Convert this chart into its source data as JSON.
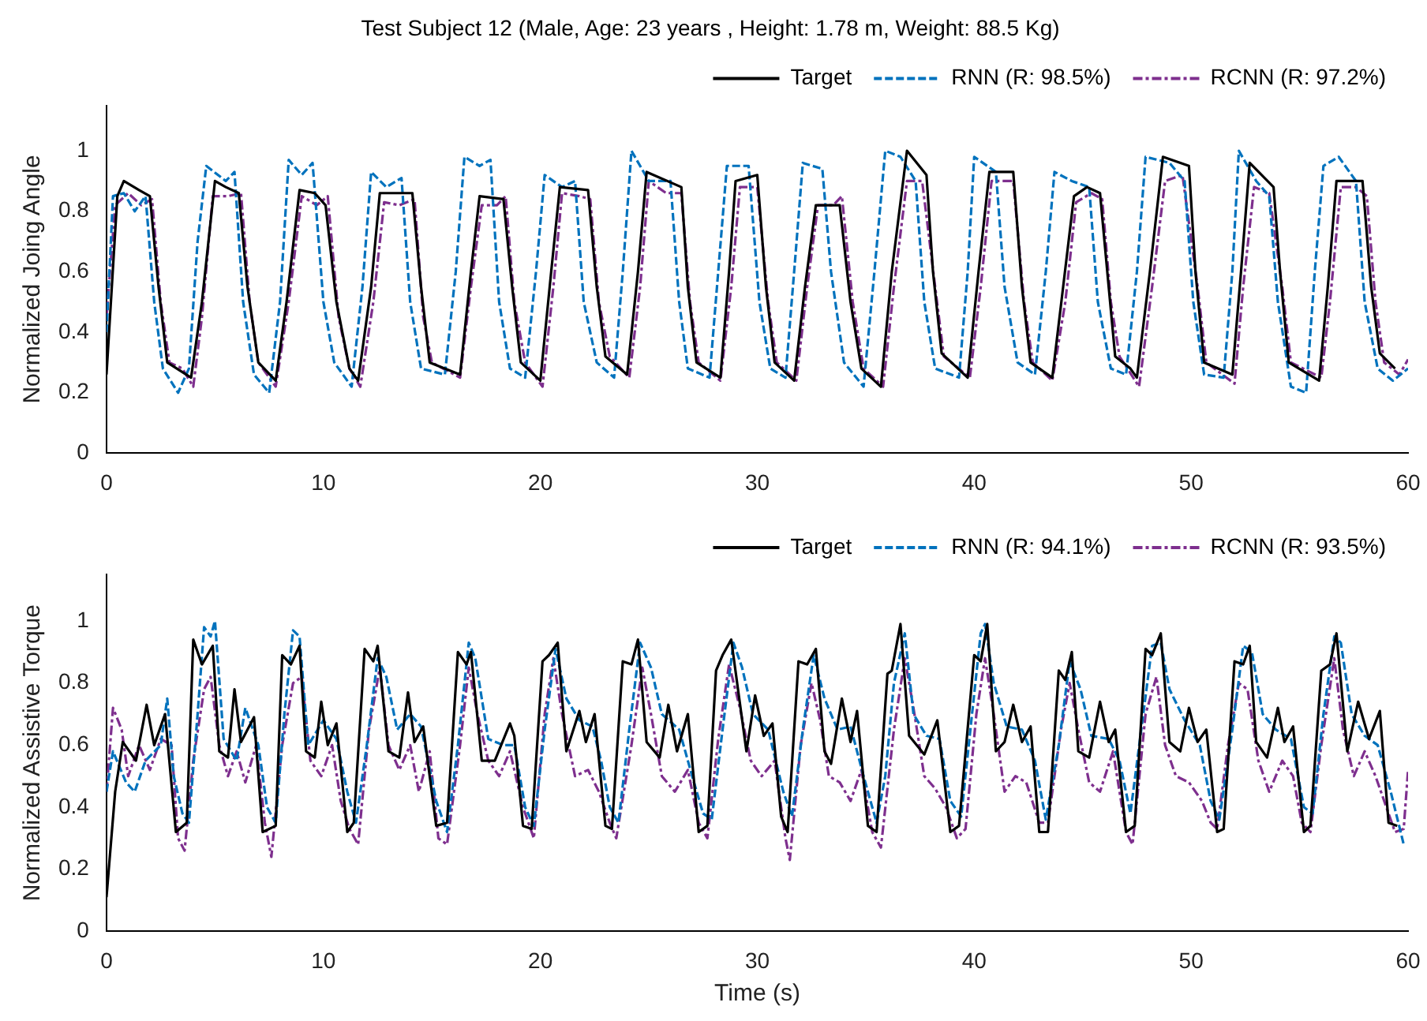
{
  "chart_data": [
    {
      "type": "line",
      "title": "Test Subject 12 (Male, Age: 23 years , Height: 1.78 m, Weight: 88.5 Kg)",
      "ylabel": "Normalized Joing Angle",
      "xlim": [
        0,
        60
      ],
      "xticks": [
        0,
        10,
        20,
        30,
        40,
        50,
        60
      ],
      "ylim": [
        0,
        1.15
      ],
      "yticks": [
        0,
        0.2,
        0.4,
        0.6,
        0.8,
        1
      ],
      "grid": false,
      "legend": "top right",
      "marker": "none",
      "series": [
        {
          "name": "Target",
          "color": "#000000",
          "line_style": "solid",
          "x": [
            0,
            0.5,
            0.8,
            1.5,
            2.0,
            2.4,
            2.8,
            3.9,
            4.4,
            5.0,
            5.5,
            6.1,
            6.5,
            7.0,
            7.8,
            8.3,
            8.9,
            9.6,
            10.1,
            10.6,
            11.2,
            11.6,
            12.2,
            12.6,
            14.1,
            14.5,
            14.9,
            16.3,
            16.8,
            17.2,
            18.3,
            18.7,
            19.1,
            20.0,
            20.5,
            20.9,
            22.2,
            22.6,
            23.0,
            24.0,
            24.5,
            24.9,
            26.5,
            26.8,
            27.2,
            28.3,
            28.7,
            29.0,
            30.0,
            30.4,
            30.8,
            31.7,
            32.2,
            32.7,
            33.8,
            34.3,
            34.8,
            35.7,
            36.2,
            36.9,
            37.8,
            38.1,
            38.5,
            39.7,
            40.2,
            40.7,
            41.8,
            42.2,
            42.6,
            43.6,
            44.1,
            44.6,
            45.2,
            45.8,
            46.2,
            46.5,
            47.2,
            47.5,
            48.1,
            48.7,
            49.9,
            50.2,
            50.6,
            51.9,
            52.3,
            52.7,
            53.8,
            54.1,
            54.5,
            55.9,
            56.3,
            56.7,
            57.9,
            58.3,
            58.7,
            59.4
          ],
          "values": [
            0.26,
            0.85,
            0.9,
            0.87,
            0.85,
            0.55,
            0.3,
            0.25,
            0.5,
            0.9,
            0.88,
            0.86,
            0.55,
            0.3,
            0.24,
            0.5,
            0.87,
            0.86,
            0.82,
            0.5,
            0.28,
            0.24,
            0.55,
            0.86,
            0.86,
            0.55,
            0.3,
            0.26,
            0.6,
            0.85,
            0.84,
            0.55,
            0.3,
            0.24,
            0.6,
            0.88,
            0.87,
            0.55,
            0.32,
            0.26,
            0.6,
            0.93,
            0.88,
            0.55,
            0.3,
            0.25,
            0.6,
            0.9,
            0.92,
            0.55,
            0.3,
            0.24,
            0.55,
            0.82,
            0.82,
            0.5,
            0.28,
            0.22,
            0.6,
            1.0,
            0.92,
            0.6,
            0.33,
            0.25,
            0.6,
            0.93,
            0.93,
            0.55,
            0.3,
            0.25,
            0.55,
            0.85,
            0.88,
            0.86,
            0.55,
            0.32,
            0.28,
            0.25,
            0.6,
            0.98,
            0.95,
            0.6,
            0.3,
            0.26,
            0.6,
            0.96,
            0.88,
            0.6,
            0.3,
            0.24,
            0.55,
            0.9,
            0.9,
            0.55,
            0.33,
            0.28
          ]
        },
        {
          "name": "RNN (R: 98.5%)",
          "color": "#0072bd",
          "line_style": "dashed",
          "x": [
            0,
            0.3,
            0.8,
            1.3,
            1.8,
            2.2,
            2.6,
            3.3,
            3.8,
            4.2,
            4.6,
            5.5,
            5.9,
            6.3,
            6.8,
            7.5,
            8.0,
            8.4,
            9.0,
            9.5,
            10.0,
            10.5,
            11.3,
            11.8,
            12.2,
            12.9,
            13.6,
            14.0,
            14.5,
            15.6,
            16.1,
            16.5,
            17.2,
            17.7,
            18.1,
            18.6,
            19.3,
            19.8,
            20.2,
            21.0,
            21.6,
            22.0,
            22.6,
            23.4,
            23.8,
            24.2,
            25.0,
            26.0,
            26.4,
            26.8,
            27.8,
            28.2,
            28.6,
            29.6,
            30.1,
            30.6,
            31.3,
            31.7,
            32.1,
            33.0,
            33.4,
            34.0,
            34.9,
            35.4,
            35.9,
            36.6,
            37.3,
            37.7,
            38.2,
            39.3,
            39.7,
            40.0,
            41.0,
            41.4,
            42.0,
            42.8,
            43.3,
            43.7,
            44.5,
            45.3,
            45.7,
            46.3,
            47.0,
            47.5,
            47.9,
            49.0,
            49.7,
            50.1,
            50.6,
            51.5,
            51.9,
            52.2,
            53.0,
            53.6,
            54.0,
            54.6,
            55.3,
            55.7,
            56.1,
            56.8,
            57.6,
            58.0,
            58.6,
            59.3,
            60
          ],
          "values": [
            0.4,
            0.85,
            0.86,
            0.8,
            0.85,
            0.5,
            0.28,
            0.2,
            0.28,
            0.7,
            0.95,
            0.9,
            0.93,
            0.5,
            0.26,
            0.2,
            0.5,
            0.97,
            0.92,
            0.96,
            0.5,
            0.3,
            0.22,
            0.55,
            0.93,
            0.88,
            0.91,
            0.5,
            0.28,
            0.26,
            0.6,
            0.98,
            0.95,
            0.97,
            0.5,
            0.28,
            0.25,
            0.6,
            0.92,
            0.88,
            0.9,
            0.5,
            0.3,
            0.25,
            0.6,
            1.0,
            0.9,
            0.9,
            0.5,
            0.28,
            0.25,
            0.6,
            0.95,
            0.95,
            0.5,
            0.28,
            0.25,
            0.6,
            0.96,
            0.94,
            0.6,
            0.3,
            0.22,
            0.6,
            1.0,
            0.98,
            0.9,
            0.5,
            0.28,
            0.25,
            0.6,
            0.98,
            0.93,
            0.55,
            0.3,
            0.26,
            0.6,
            0.93,
            0.9,
            0.88,
            0.5,
            0.28,
            0.26,
            0.6,
            0.98,
            0.96,
            0.9,
            0.5,
            0.26,
            0.25,
            0.6,
            1.0,
            0.9,
            0.85,
            0.5,
            0.22,
            0.2,
            0.6,
            0.95,
            0.98,
            0.9,
            0.5,
            0.28,
            0.24,
            0.28
          ]
        },
        {
          "name": "RCNN (R: 97.2%)",
          "color": "#7e2f8e",
          "line_style": "dashdot",
          "x": [
            0,
            0.4,
            1.0,
            1.6,
            2.1,
            2.5,
            2.9,
            3.5,
            4.0,
            4.4,
            4.9,
            5.6,
            6.2,
            6.6,
            7.0,
            7.8,
            8.4,
            9.0,
            9.7,
            10.2,
            10.7,
            11.2,
            11.7,
            12.3,
            12.8,
            13.5,
            14.2,
            14.6,
            15.0,
            16.3,
            16.8,
            17.3,
            18.0,
            18.4,
            18.8,
            19.3,
            20.1,
            20.6,
            21.0,
            21.8,
            22.3,
            22.7,
            23.2,
            24.1,
            24.6,
            25.0,
            25.8,
            26.5,
            26.9,
            27.3,
            28.3,
            28.8,
            29.2,
            30.0,
            30.5,
            30.9,
            31.8,
            32.3,
            32.8,
            33.5,
            33.9,
            34.4,
            34.9,
            35.8,
            36.3,
            36.9,
            37.6,
            38.2,
            38.6,
            39.8,
            40.3,
            40.8,
            41.8,
            42.3,
            42.7,
            43.6,
            44.2,
            44.7,
            45.4,
            45.9,
            46.3,
            46.7,
            47.6,
            48.2,
            48.8,
            49.6,
            50.3,
            50.7,
            52.0,
            52.4,
            52.9,
            53.6,
            54.2,
            54.6,
            56.0,
            56.4,
            56.9,
            57.6,
            58.1,
            58.5,
            58.9,
            59.6,
            60
          ],
          "values": [
            0.45,
            0.82,
            0.86,
            0.82,
            0.84,
            0.5,
            0.3,
            0.28,
            0.22,
            0.45,
            0.85,
            0.85,
            0.86,
            0.5,
            0.3,
            0.22,
            0.5,
            0.85,
            0.82,
            0.85,
            0.45,
            0.28,
            0.22,
            0.5,
            0.83,
            0.82,
            0.84,
            0.45,
            0.3,
            0.25,
            0.55,
            0.82,
            0.82,
            0.85,
            0.5,
            0.3,
            0.22,
            0.55,
            0.86,
            0.85,
            0.84,
            0.5,
            0.32,
            0.25,
            0.55,
            0.9,
            0.86,
            0.86,
            0.5,
            0.3,
            0.24,
            0.55,
            0.88,
            0.88,
            0.5,
            0.3,
            0.24,
            0.55,
            0.82,
            0.82,
            0.85,
            0.5,
            0.28,
            0.22,
            0.55,
            0.9,
            0.9,
            0.55,
            0.32,
            0.25,
            0.55,
            0.9,
            0.9,
            0.5,
            0.3,
            0.24,
            0.5,
            0.83,
            0.86,
            0.84,
            0.5,
            0.32,
            0.22,
            0.55,
            0.9,
            0.92,
            0.55,
            0.3,
            0.23,
            0.55,
            0.88,
            0.86,
            0.55,
            0.3,
            0.25,
            0.5,
            0.88,
            0.88,
            0.85,
            0.5,
            0.3,
            0.26,
            0.31
          ]
        }
      ]
    },
    {
      "type": "line",
      "xlabel": "Time (s)",
      "ylabel": "Normalized Assistive Torque",
      "xlim": [
        0,
        60
      ],
      "xticks": [
        0,
        10,
        20,
        30,
        40,
        50,
        60
      ],
      "ylim": [
        0,
        1.15
      ],
      "yticks": [
        0,
        0.2,
        0.4,
        0.6,
        0.8,
        1
      ],
      "grid": false,
      "legend": "top right",
      "marker": "none",
      "series": [
        {
          "name": "Target",
          "color": "#000000",
          "line_style": "solid",
          "x": [
            0,
            0.4,
            0.75,
            1.36,
            1.85,
            2.2,
            2.7,
            3.2,
            3.7,
            4.0,
            4.4,
            4.9,
            5.2,
            5.6,
            5.9,
            6.2,
            6.8,
            7.2,
            7.8,
            8.1,
            8.5,
            8.9,
            9.2,
            9.6,
            9.9,
            10.2,
            10.6,
            11.1,
            11.4,
            11.9,
            12.3,
            12.5,
            13.0,
            13.5,
            13.9,
            14.2,
            14.6,
            15.2,
            15.7,
            16.2,
            16.6,
            16.8,
            17.3,
            17.9,
            18.6,
            18.8,
            19.2,
            19.6,
            20.1,
            20.4,
            20.8,
            21.2,
            21.8,
            22.1,
            22.5,
            23.0,
            23.3,
            23.8,
            24.2,
            24.5,
            24.9,
            25.5,
            25.9,
            26.3,
            26.8,
            27.3,
            27.7,
            28.1,
            28.4,
            28.8,
            29.5,
            29.9,
            30.3,
            30.7,
            31.1,
            31.4,
            31.9,
            32.3,
            32.7,
            33.1,
            33.4,
            33.9,
            34.3,
            34.6,
            35.1,
            35.5,
            36.0,
            36.2,
            36.6,
            37.0,
            37.7,
            38.3,
            38.9,
            39.3,
            40.0,
            40.3,
            40.6,
            41.0,
            41.4,
            41.8,
            42.2,
            42.6,
            43.0,
            43.4,
            43.9,
            44.2,
            44.5,
            44.8,
            45.3,
            45.8,
            46.2,
            46.5,
            47.0,
            47.4,
            47.9,
            48.2,
            48.6,
            49.0,
            49.5,
            49.9,
            50.3,
            50.7,
            51.2,
            51.5,
            52.0,
            52.4,
            52.7,
            53.0,
            53.5,
            54.0,
            54.3,
            54.7,
            55.2,
            55.5,
            56.0,
            56.4,
            56.7,
            57.2,
            57.7,
            58.2,
            58.7,
            59.1,
            59.5
          ],
          "values": [
            0.11,
            0.45,
            0.61,
            0.55,
            0.73,
            0.6,
            0.7,
            0.32,
            0.35,
            0.94,
            0.86,
            0.92,
            0.58,
            0.56,
            0.78,
            0.61,
            0.69,
            0.32,
            0.34,
            0.89,
            0.86,
            0.92,
            0.58,
            0.56,
            0.74,
            0.6,
            0.67,
            0.32,
            0.35,
            0.91,
            0.87,
            0.92,
            0.58,
            0.56,
            0.77,
            0.61,
            0.66,
            0.34,
            0.35,
            0.9,
            0.86,
            0.9,
            0.55,
            0.55,
            0.67,
            0.63,
            0.34,
            0.33,
            0.87,
            0.89,
            0.93,
            0.58,
            0.71,
            0.61,
            0.7,
            0.34,
            0.33,
            0.87,
            0.86,
            0.94,
            0.61,
            0.56,
            0.73,
            0.58,
            0.7,
            0.32,
            0.34,
            0.84,
            0.89,
            0.94,
            0.58,
            0.76,
            0.63,
            0.67,
            0.37,
            0.32,
            0.87,
            0.86,
            0.91,
            0.58,
            0.54,
            0.75,
            0.61,
            0.71,
            0.34,
            0.32,
            0.83,
            0.84,
            0.99,
            0.63,
            0.57,
            0.68,
            0.32,
            0.34,
            0.89,
            0.87,
            0.99,
            0.58,
            0.61,
            0.73,
            0.61,
            0.66,
            0.32,
            0.32,
            0.84,
            0.81,
            0.9,
            0.58,
            0.56,
            0.74,
            0.61,
            0.65,
            0.32,
            0.34,
            0.91,
            0.89,
            0.96,
            0.61,
            0.58,
            0.72,
            0.61,
            0.65,
            0.32,
            0.33,
            0.87,
            0.86,
            0.92,
            0.61,
            0.56,
            0.72,
            0.61,
            0.66,
            0.32,
            0.34,
            0.84,
            0.86,
            0.96,
            0.58,
            0.74,
            0.62,
            0.71,
            0.35,
            0.34
          ]
        },
        {
          "name": "RNN (R: 94.1%)",
          "color": "#0072bd",
          "line_style": "dashed",
          "x": [
            0,
            0.3,
            0.9,
            1.3,
            1.8,
            2.5,
            2.8,
            3.1,
            3.5,
            3.8,
            4.2,
            4.5,
            4.8,
            5.0,
            5.4,
            6.0,
            6.4,
            7.0,
            7.4,
            7.8,
            8.2,
            8.6,
            8.9,
            9.3,
            10.0,
            10.6,
            11.1,
            11.5,
            12.0,
            12.5,
            12.9,
            13.4,
            14.0,
            14.5,
            15.2,
            15.7,
            16.2,
            16.7,
            17.0,
            17.6,
            18.3,
            18.8,
            19.3,
            19.7,
            20.2,
            20.7,
            21.2,
            21.8,
            22.4,
            22.8,
            23.2,
            23.6,
            24.1,
            24.6,
            25.1,
            25.6,
            26.4,
            27.0,
            27.5,
            27.9,
            28.4,
            28.9,
            29.3,
            29.8,
            30.5,
            31.2,
            31.6,
            32.1,
            32.6,
            33.1,
            33.7,
            34.3,
            34.9,
            35.5,
            35.9,
            36.3,
            36.8,
            37.2,
            37.8,
            38.4,
            38.9,
            39.4,
            39.9,
            40.3,
            40.5,
            40.9,
            41.5,
            42.2,
            42.8,
            43.3,
            43.9,
            44.4,
            44.9,
            45.4,
            46.2,
            46.7,
            47.2,
            47.7,
            48.2,
            48.6,
            49.0,
            49.7,
            50.4,
            50.9,
            51.3,
            51.9,
            52.4,
            52.8,
            53.3,
            53.9,
            54.6,
            55.2,
            55.6,
            56.1,
            56.6,
            56.9,
            57.4,
            58.0,
            58.6,
            59.2,
            59.8
          ],
          "values": [
            0.45,
            0.58,
            0.48,
            0.45,
            0.55,
            0.6,
            0.75,
            0.5,
            0.38,
            0.35,
            0.7,
            0.98,
            0.95,
            1.0,
            0.62,
            0.55,
            0.72,
            0.6,
            0.4,
            0.35,
            0.7,
            0.97,
            0.95,
            0.6,
            0.68,
            0.62,
            0.45,
            0.35,
            0.6,
            0.88,
            0.82,
            0.65,
            0.7,
            0.66,
            0.42,
            0.32,
            0.6,
            0.93,
            0.88,
            0.62,
            0.6,
            0.6,
            0.4,
            0.34,
            0.65,
            0.91,
            0.75,
            0.68,
            0.66,
            0.55,
            0.4,
            0.35,
            0.65,
            0.93,
            0.85,
            0.7,
            0.65,
            0.5,
            0.38,
            0.36,
            0.65,
            0.93,
            0.85,
            0.7,
            0.65,
            0.45,
            0.37,
            0.65,
            0.89,
            0.75,
            0.65,
            0.66,
            0.5,
            0.35,
            0.5,
            0.8,
            0.96,
            0.7,
            0.63,
            0.62,
            0.42,
            0.37,
            0.7,
            0.96,
            0.99,
            0.8,
            0.66,
            0.65,
            0.55,
            0.36,
            0.6,
            0.87,
            0.78,
            0.63,
            0.62,
            0.55,
            0.38,
            0.65,
            0.92,
            0.93,
            0.78,
            0.68,
            0.6,
            0.42,
            0.36,
            0.65,
            0.92,
            0.9,
            0.7,
            0.65,
            0.62,
            0.4,
            0.38,
            0.7,
            0.95,
            0.93,
            0.7,
            0.63,
            0.6,
            0.45,
            0.28
          ]
        },
        {
          "name": "RCNN (R: 93.5%)",
          "color": "#7e2f8e",
          "line_style": "dashdot",
          "x": [
            0,
            0.3,
            0.7,
            1.0,
            1.5,
            2.0,
            2.5,
            3.0,
            3.3,
            3.6,
            4.0,
            4.5,
            4.8,
            5.2,
            5.6,
            6.0,
            6.4,
            6.9,
            7.3,
            7.6,
            8.1,
            8.6,
            9.0,
            9.4,
            9.9,
            10.4,
            10.8,
            11.2,
            11.6,
            12.1,
            12.6,
            13.0,
            13.5,
            14.0,
            14.4,
            14.9,
            15.3,
            15.7,
            16.3,
            16.7,
            17.1,
            17.6,
            18.1,
            18.6,
            19.2,
            19.7,
            20.2,
            20.6,
            21.0,
            21.6,
            22.2,
            22.7,
            23.2,
            23.5,
            24.2,
            24.7,
            25.1,
            25.6,
            26.2,
            26.8,
            27.3,
            27.7,
            28.2,
            28.7,
            29.2,
            29.7,
            30.2,
            30.8,
            31.3,
            31.5,
            32.0,
            32.5,
            32.9,
            33.3,
            33.8,
            34.3,
            34.8,
            35.3,
            35.7,
            36.3,
            36.8,
            37.2,
            37.7,
            38.2,
            38.7,
            39.2,
            39.6,
            40.1,
            40.5,
            40.9,
            41.4,
            41.9,
            42.4,
            43.0,
            43.4,
            44.0,
            44.4,
            44.8,
            45.3,
            45.8,
            46.4,
            47.0,
            47.3,
            47.9,
            48.4,
            48.8,
            49.3,
            49.9,
            50.5,
            50.9,
            51.2,
            51.7,
            52.2,
            52.6,
            53.1,
            53.6,
            54.2,
            54.7,
            55.1,
            55.5,
            56.0,
            56.6,
            57.0,
            57.5,
            58.0,
            58.5,
            59.0,
            59.4,
            59.8,
            60
          ],
          "values": [
            0.45,
            0.72,
            0.65,
            0.5,
            0.6,
            0.52,
            0.62,
            0.6,
            0.3,
            0.26,
            0.55,
            0.78,
            0.82,
            0.6,
            0.5,
            0.58,
            0.48,
            0.6,
            0.35,
            0.24,
            0.6,
            0.8,
            0.82,
            0.55,
            0.5,
            0.6,
            0.42,
            0.33,
            0.28,
            0.65,
            0.85,
            0.6,
            0.52,
            0.6,
            0.45,
            0.58,
            0.3,
            0.28,
            0.6,
            0.85,
            0.7,
            0.55,
            0.5,
            0.58,
            0.4,
            0.3,
            0.7,
            0.88,
            0.7,
            0.5,
            0.52,
            0.45,
            0.35,
            0.3,
            0.6,
            0.85,
            0.7,
            0.5,
            0.45,
            0.52,
            0.35,
            0.3,
            0.62,
            0.86,
            0.72,
            0.55,
            0.5,
            0.55,
            0.3,
            0.23,
            0.6,
            0.8,
            0.68,
            0.5,
            0.48,
            0.42,
            0.52,
            0.32,
            0.27,
            0.65,
            0.88,
            0.72,
            0.5,
            0.46,
            0.4,
            0.3,
            0.33,
            0.7,
            0.88,
            0.7,
            0.45,
            0.5,
            0.48,
            0.35,
            0.35,
            0.65,
            0.8,
            0.65,
            0.48,
            0.45,
            0.58,
            0.32,
            0.28,
            0.7,
            0.82,
            0.6,
            0.5,
            0.48,
            0.42,
            0.35,
            0.33,
            0.6,
            0.8,
            0.78,
            0.55,
            0.45,
            0.55,
            0.5,
            0.35,
            0.32,
            0.6,
            0.88,
            0.65,
            0.5,
            0.58,
            0.5,
            0.4,
            0.32,
            0.33,
            0.52
          ]
        }
      ]
    }
  ]
}
